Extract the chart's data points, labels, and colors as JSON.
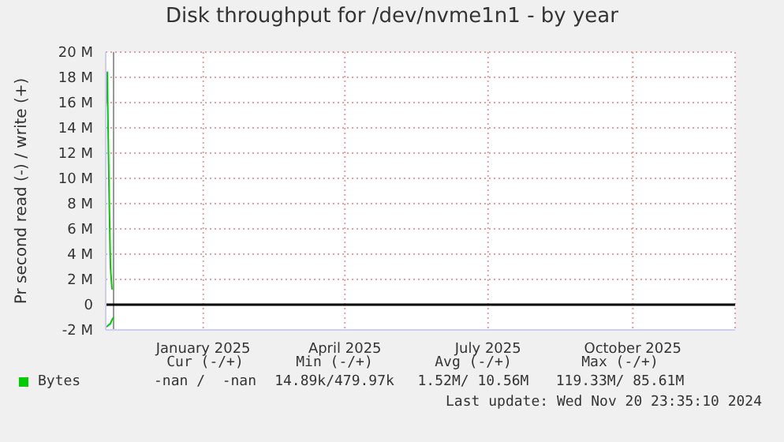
{
  "chart_data": {
    "type": "line",
    "title": "Disk throughput for /dev/nvme1n1 - by year",
    "ylabel": "Pr second read (-) / write (+)",
    "xlim": [
      "2024-11-15",
      "2025-12-20"
    ],
    "xticks": [
      {
        "value": "2025-01-16",
        "label": "January 2025"
      },
      {
        "value": "2025-04-16",
        "label": "April 2025"
      },
      {
        "value": "2025-07-16",
        "label": "July 2025"
      },
      {
        "value": "2025-10-16",
        "label": "October 2025"
      }
    ],
    "ylim": [
      -2000000,
      20000000
    ],
    "yticks": [
      {
        "value": -2000000,
        "label": "-2 M"
      },
      {
        "value": 0,
        "label": "0"
      },
      {
        "value": 2000000,
        "label": "2 M"
      },
      {
        "value": 4000000,
        "label": "4 M"
      },
      {
        "value": 6000000,
        "label": "6 M"
      },
      {
        "value": 8000000,
        "label": "8 M"
      },
      {
        "value": 10000000,
        "label": "10 M"
      },
      {
        "value": 12000000,
        "label": "12 M"
      },
      {
        "value": 14000000,
        "label": "14 M"
      },
      {
        "value": 16000000,
        "label": "16 M"
      },
      {
        "value": 18000000,
        "label": "18 M"
      },
      {
        "value": 20000000,
        "label": "20 M"
      }
    ],
    "grid": true,
    "legend": "bottom left",
    "marker": "none",
    "line_style": "solid",
    "series": [
      {
        "name": "Bytes",
        "color": "#00cc00",
        "x": [
          "2024-11-15",
          "2024-11-16",
          "2024-11-17",
          "2024-11-18",
          "2024-11-19"
        ],
        "values": [
          15500000,
          18400000,
          10000000,
          3000000,
          1200000
        ]
      },
      {
        "color": "#00cc00",
        "x": [
          "2024-11-15",
          "2024-11-16",
          "2024-11-17",
          "2024-11-18",
          "2024-11-19",
          "2024-11-20"
        ],
        "values": [
          -1800000,
          -1700000,
          -1600000,
          -1500000,
          -1200000,
          -1000000
        ]
      }
    ],
    "ref_lines": [
      {
        "axis": "x",
        "value": "2024-11-20",
        "color": "#999999"
      },
      {
        "axis": "y",
        "value": 0,
        "color": "#000000"
      }
    ],
    "annotations": [
      "Cur (-/+)",
      "Min (-/+)",
      "Avg (-/+)",
      "Max (-/+)",
      "-nan /  -nan",
      "14.89k/479.97k",
      "1.52M/ 10.56M",
      "119.33M/ 85.61M",
      "Last update: Wed Nov 20 23:35:10 2024"
    ]
  }
}
